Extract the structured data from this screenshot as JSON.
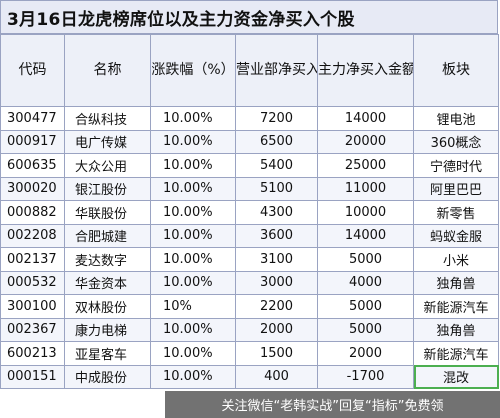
{
  "title": "3月16日龙虎榜席位以及主力资金净买入个股",
  "headers": [
    "代码",
    "名称",
    "涨跌幅（%）",
    "营业部净买入金额（万）",
    "主力净买入金额（万）",
    "板块"
  ],
  "rows": [
    {
      "code": "300477",
      "name": "合纵科技",
      "change": "10.00%",
      "dept_net": "7200",
      "main_net": "14000",
      "sector": "锂电池"
    },
    {
      "code": "000917",
      "name": "电广传媒",
      "change": "10.00%",
      "dept_net": "6500",
      "main_net": "20000",
      "sector": "360概念"
    },
    {
      "code": "600635",
      "name": "大众公用",
      "change": "10.00%",
      "dept_net": "5400",
      "main_net": "25000",
      "sector": "宁德时代"
    },
    {
      "code": "300020",
      "name": "银江股份",
      "change": "10.00%",
      "dept_net": "5100",
      "main_net": "11000",
      "sector": "阿里巴巴"
    },
    {
      "code": "000882",
      "name": "华联股份",
      "change": "10.00%",
      "dept_net": "4300",
      "main_net": "10000",
      "sector": "新零售"
    },
    {
      "code": "002208",
      "name": "合肥城建",
      "change": "10.00%",
      "dept_net": "3600",
      "main_net": "14000",
      "sector": "蚂蚁金服"
    },
    {
      "code": "002137",
      "name": "麦达数字",
      "change": "10.00%",
      "dept_net": "3100",
      "main_net": "5000",
      "sector": "小米"
    },
    {
      "code": "000532",
      "name": "华金资本",
      "change": "10.00%",
      "dept_net": "3000",
      "main_net": "4000",
      "sector": "独角兽"
    },
    {
      "code": "300100",
      "name": "双林股份",
      "change": "10%",
      "dept_net": "2200",
      "main_net": "5000",
      "sector": "新能源汽车"
    },
    {
      "code": "002367",
      "name": "康力电梯",
      "change": "10.00%",
      "dept_net": "2000",
      "main_net": "5000",
      "sector": "独角兽"
    },
    {
      "code": "600213",
      "name": "亚星客车",
      "change": "10.00%",
      "dept_net": "1500",
      "main_net": "2000",
      "sector": "新能源汽车"
    },
    {
      "code": "000151",
      "name": "中成股份",
      "change": "10.00%",
      "dept_net": "400",
      "main_net": "-1700",
      "sector": "混改"
    }
  ],
  "watermark": "关注微信“老韩实战”回复“指标”免费领"
}
